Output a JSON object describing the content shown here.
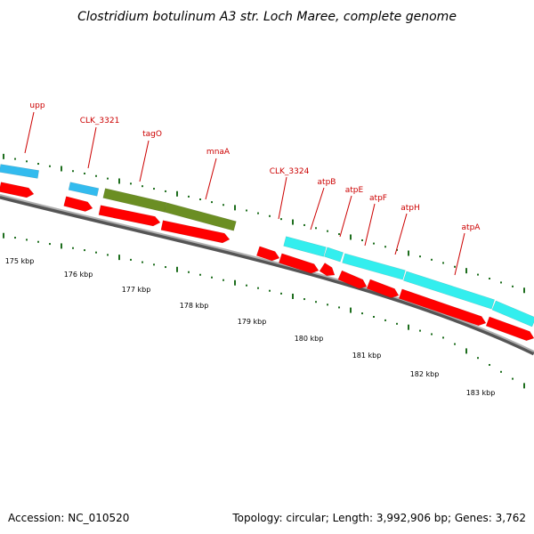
{
  "title": "Clostridium botulinum A3 str. Loch Maree, complete genome",
  "footer": {
    "accession": "Accession: NC_010520",
    "summary": "Topology: circular; Length: 3,992,906 bp; Genes: 3,762"
  },
  "colors": {
    "backbone": "#8a8a8a",
    "tick": "#1e6e1e",
    "label": "#cc0000",
    "cds": "#ff0000",
    "blue_feature": "#33bbee",
    "cyan_feature": "#33eeee",
    "olive_feature": "#6b8e23"
  },
  "scale_labels": [
    "175 kbp",
    "176 kbp",
    "177 kbp",
    "178 kbp",
    "179 kbp",
    "180 kbp",
    "181 kbp",
    "182 kbp",
    "183 kbp"
  ],
  "gene_labels": [
    "upp",
    "CLK_3321",
    "tagO",
    "mnaA",
    "CLK_3324",
    "atpB",
    "atpE",
    "atpF",
    "atpH",
    "atpA"
  ]
}
